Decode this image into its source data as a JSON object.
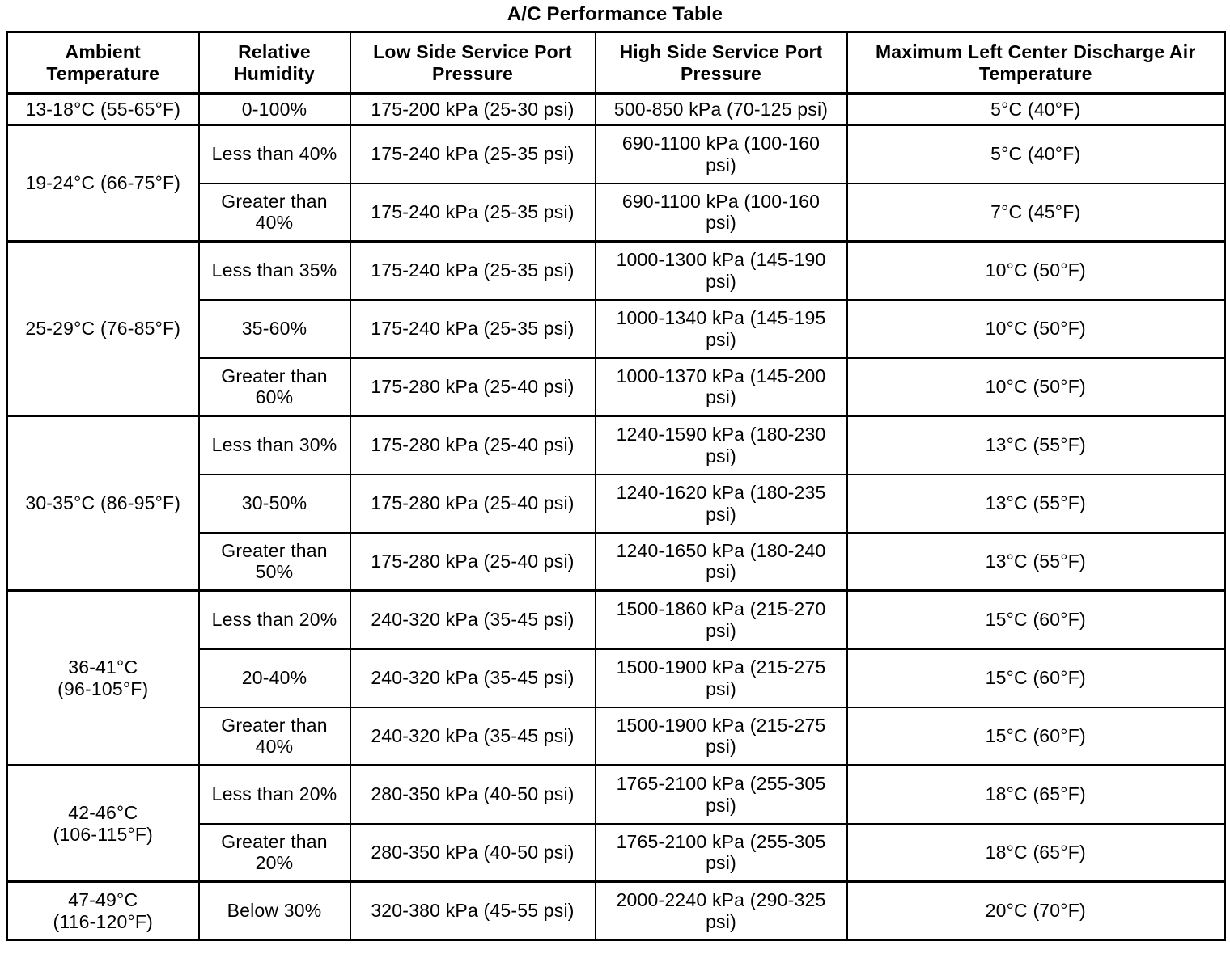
{
  "title": "A/C Performance Table",
  "table": {
    "headers": [
      "Ambient\nTemperature",
      "Relative\nHumidity",
      "Low Side Service Port\nPressure",
      "High Side Service Port\nPressure",
      "Maximum Left Center Discharge Air\nTemperature"
    ],
    "groups": [
      {
        "ambient": "13-18°C (55-65°F)",
        "rows": [
          {
            "humidity": "0-100%",
            "low_side": "175-200 kPa (25-30 psi)",
            "high_side": "500-850 kPa (70-125 psi)",
            "discharge": "5°C (40°F)"
          }
        ]
      },
      {
        "ambient": "19-24°C (66-75°F)",
        "rows": [
          {
            "humidity": "Less than 40%",
            "low_side": "175-240 kPa (25-35 psi)",
            "high_side": "690-1100 kPa (100-160\npsi)",
            "discharge": "5°C (40°F)"
          },
          {
            "humidity": "Greater than\n40%",
            "low_side": "175-240 kPa (25-35 psi)",
            "high_side": "690-1100 kPa (100-160\npsi)",
            "discharge": "7°C (45°F)"
          }
        ]
      },
      {
        "ambient": "25-29°C (76-85°F)",
        "rows": [
          {
            "humidity": "Less than 35%",
            "low_side": "175-240 kPa (25-35 psi)",
            "high_side": "1000-1300 kPa (145-190\npsi)",
            "discharge": "10°C (50°F)"
          },
          {
            "humidity": "35-60%",
            "low_side": "175-240 kPa (25-35 psi)",
            "high_side": "1000-1340 kPa (145-195\npsi)",
            "discharge": "10°C (50°F)"
          },
          {
            "humidity": "Greater than\n60%",
            "low_side": "175-280 kPa (25-40 psi)",
            "high_side": "1000-1370 kPa (145-200\npsi)",
            "discharge": "10°C (50°F)"
          }
        ]
      },
      {
        "ambient": "30-35°C (86-95°F)",
        "rows": [
          {
            "humidity": "Less than 30%",
            "low_side": "175-280 kPa (25-40 psi)",
            "high_side": "1240-1590 kPa (180-230\npsi)",
            "discharge": "13°C (55°F)"
          },
          {
            "humidity": "30-50%",
            "low_side": "175-280 kPa (25-40 psi)",
            "high_side": "1240-1620 kPa (180-235\npsi)",
            "discharge": "13°C (55°F)"
          },
          {
            "humidity": "Greater than\n50%",
            "low_side": "175-280 kPa (25-40 psi)",
            "high_side": "1240-1650 kPa (180-240\npsi)",
            "discharge": "13°C (55°F)"
          }
        ]
      },
      {
        "ambient": "36-41°C\n(96-105°F)",
        "rows": [
          {
            "humidity": "Less than 20%",
            "low_side": "240-320 kPa (35-45 psi)",
            "high_side": "1500-1860 kPa (215-270\npsi)",
            "discharge": "15°C (60°F)"
          },
          {
            "humidity": "20-40%",
            "low_side": "240-320 kPa (35-45 psi)",
            "high_side": "1500-1900 kPa (215-275\npsi)",
            "discharge": "15°C (60°F)"
          },
          {
            "humidity": "Greater than\n40%",
            "low_side": "240-320 kPa (35-45 psi)",
            "high_side": "1500-1900 kPa (215-275\npsi)",
            "discharge": "15°C (60°F)"
          }
        ]
      },
      {
        "ambient": "42-46°C\n(106-115°F)",
        "rows": [
          {
            "humidity": "Less than 20%",
            "low_side": "280-350 kPa (40-50 psi)",
            "high_side": "1765-2100 kPa (255-305\npsi)",
            "discharge": "18°C (65°F)"
          },
          {
            "humidity": "Greater than\n20%",
            "low_side": "280-350 kPa (40-50 psi)",
            "high_side": "1765-2100 kPa (255-305\npsi)",
            "discharge": "18°C (65°F)"
          }
        ]
      },
      {
        "ambient": "47-49°C\n(116-120°F)",
        "rows": [
          {
            "humidity": "Below 30%",
            "low_side": "320-380 kPa (45-55 psi)",
            "high_side": "2000-2240 kPa (290-325\npsi)",
            "discharge": "20°C (70°F)"
          }
        ]
      }
    ]
  }
}
